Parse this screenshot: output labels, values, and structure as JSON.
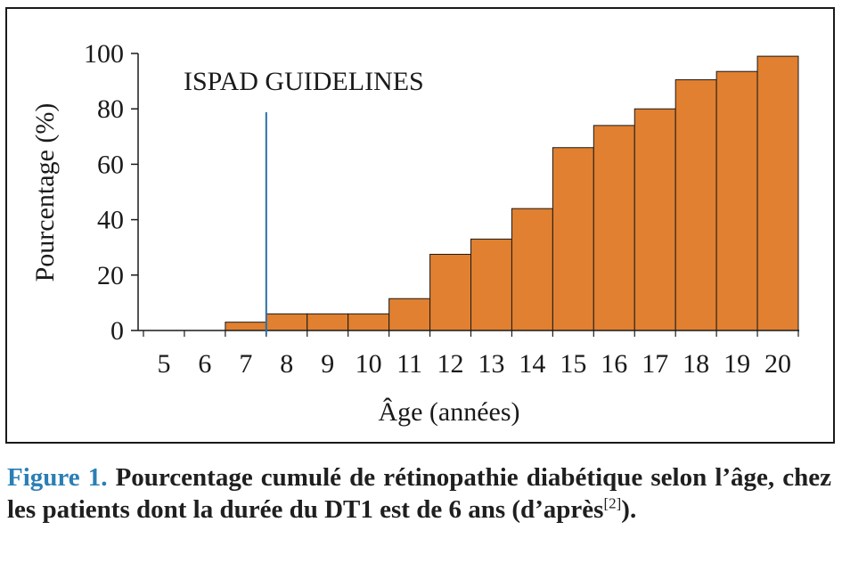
{
  "chart_data": {
    "type": "bar",
    "categories": [
      "5",
      "6",
      "7",
      "8",
      "9",
      "10",
      "11",
      "12",
      "13",
      "14",
      "15",
      "16",
      "17",
      "18",
      "19",
      "20"
    ],
    "values": [
      0,
      0,
      3,
      6,
      6,
      6,
      11.5,
      27.5,
      33,
      44,
      66,
      74,
      80,
      90.5,
      93.5,
      99
    ],
    "title": "",
    "xlabel": "Âge (années)",
    "ylabel": "Pourcentage (%)",
    "ylim": [
      0,
      100
    ],
    "yticks": [
      "0",
      "20",
      "40",
      "60",
      "80",
      "100"
    ],
    "grid": false,
    "bar_color": "#e08030",
    "annotation": {
      "text": "ISPAD GUIDELINES",
      "x_value": 7.5,
      "color": "#2a6fa8"
    }
  },
  "caption": {
    "figure_label": "Figure 1.",
    "text": "Pourcentage cumulé de rétinopathie diabétique selon l’âge, chez les patients dont la durée du DT1 est de 6 ans (d’après",
    "reference": "[2]",
    "end": ")."
  }
}
